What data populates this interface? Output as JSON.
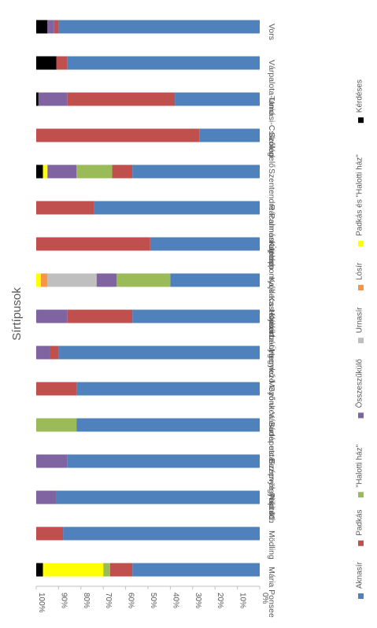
{
  "chart_data": {
    "type": "bar",
    "stacked": "percent",
    "orientation": "rotated-90-clockwise",
    "title": "Sírtípusok",
    "categories": [
      "Vors",
      "Várpalota-Unio",
      "Tamási-Csikólegelő",
      "Szólád",
      "Szentendre-Pannoniatelep",
      "Rácalmás-Újtelep",
      "Kaposhomyók-Kastélykert",
      "Kajdacs-Homokbánya",
      "Kádárta-Ürgemező",
      "Hegykő-Mező utca",
      "Gyönk-Vásártér utca",
      "Budapest-Szépvölgyi út 41.",
      "Bezenye-Paprét",
      "Nikitsch",
      "Mödling",
      "Mária Ponsee"
    ],
    "series": [
      {
        "name": "Aknasír",
        "color": "#4f81bd",
        "values": [
          90,
          86,
          38,
          27,
          57,
          74,
          49,
          40,
          57,
          90,
          82,
          82,
          86,
          91,
          88,
          57
        ]
      },
      {
        "name": "Padkás",
        "color": "#c0504d",
        "values": [
          2,
          5,
          48,
          73,
          9,
          26,
          51,
          0,
          29,
          4,
          18,
          0,
          0,
          0,
          12,
          10
        ]
      },
      {
        "name": "\"Halotti ház\"",
        "color": "#9bbb59",
        "values": [
          0,
          0,
          0,
          0,
          16,
          0,
          0,
          24,
          0,
          0,
          0,
          18,
          0,
          0,
          0,
          3
        ]
      },
      {
        "name": "Összeszűkülő",
        "color": "#8064a2",
        "values": [
          3,
          0,
          13,
          0,
          13,
          0,
          0,
          9,
          14,
          6,
          0,
          0,
          14,
          9,
          0,
          0
        ]
      },
      {
        "name": "Urnasír",
        "color": "#bfbfbf",
        "values": [
          0,
          0,
          0,
          0,
          0,
          0,
          0,
          22,
          0,
          0,
          0,
          0,
          0,
          0,
          0,
          0
        ]
      },
      {
        "name": "Lósír",
        "color": "#f79646",
        "values": [
          0,
          0,
          0,
          0,
          0,
          0,
          0,
          3,
          0,
          0,
          0,
          0,
          0,
          0,
          0,
          0
        ]
      },
      {
        "name": "Padkás és \"Halotti ház\"",
        "color": "#ffff00",
        "values": [
          0,
          0,
          0,
          0,
          2,
          0,
          0,
          2,
          0,
          0,
          0,
          0,
          0,
          0,
          0,
          27
        ]
      },
      {
        "name": "Kérdéses",
        "color": "#000000",
        "values": [
          5,
          9,
          1,
          0,
          3,
          0,
          0,
          0,
          0,
          0,
          0,
          0,
          0,
          0,
          0,
          3
        ]
      }
    ],
    "ticks": [
      "0%",
      "10%",
      "20%",
      "30%",
      "40%",
      "50%",
      "60%",
      "70%",
      "80%",
      "90%",
      "100%"
    ],
    "ylim": [
      0,
      100
    ],
    "grid": false,
    "legend": "right"
  }
}
